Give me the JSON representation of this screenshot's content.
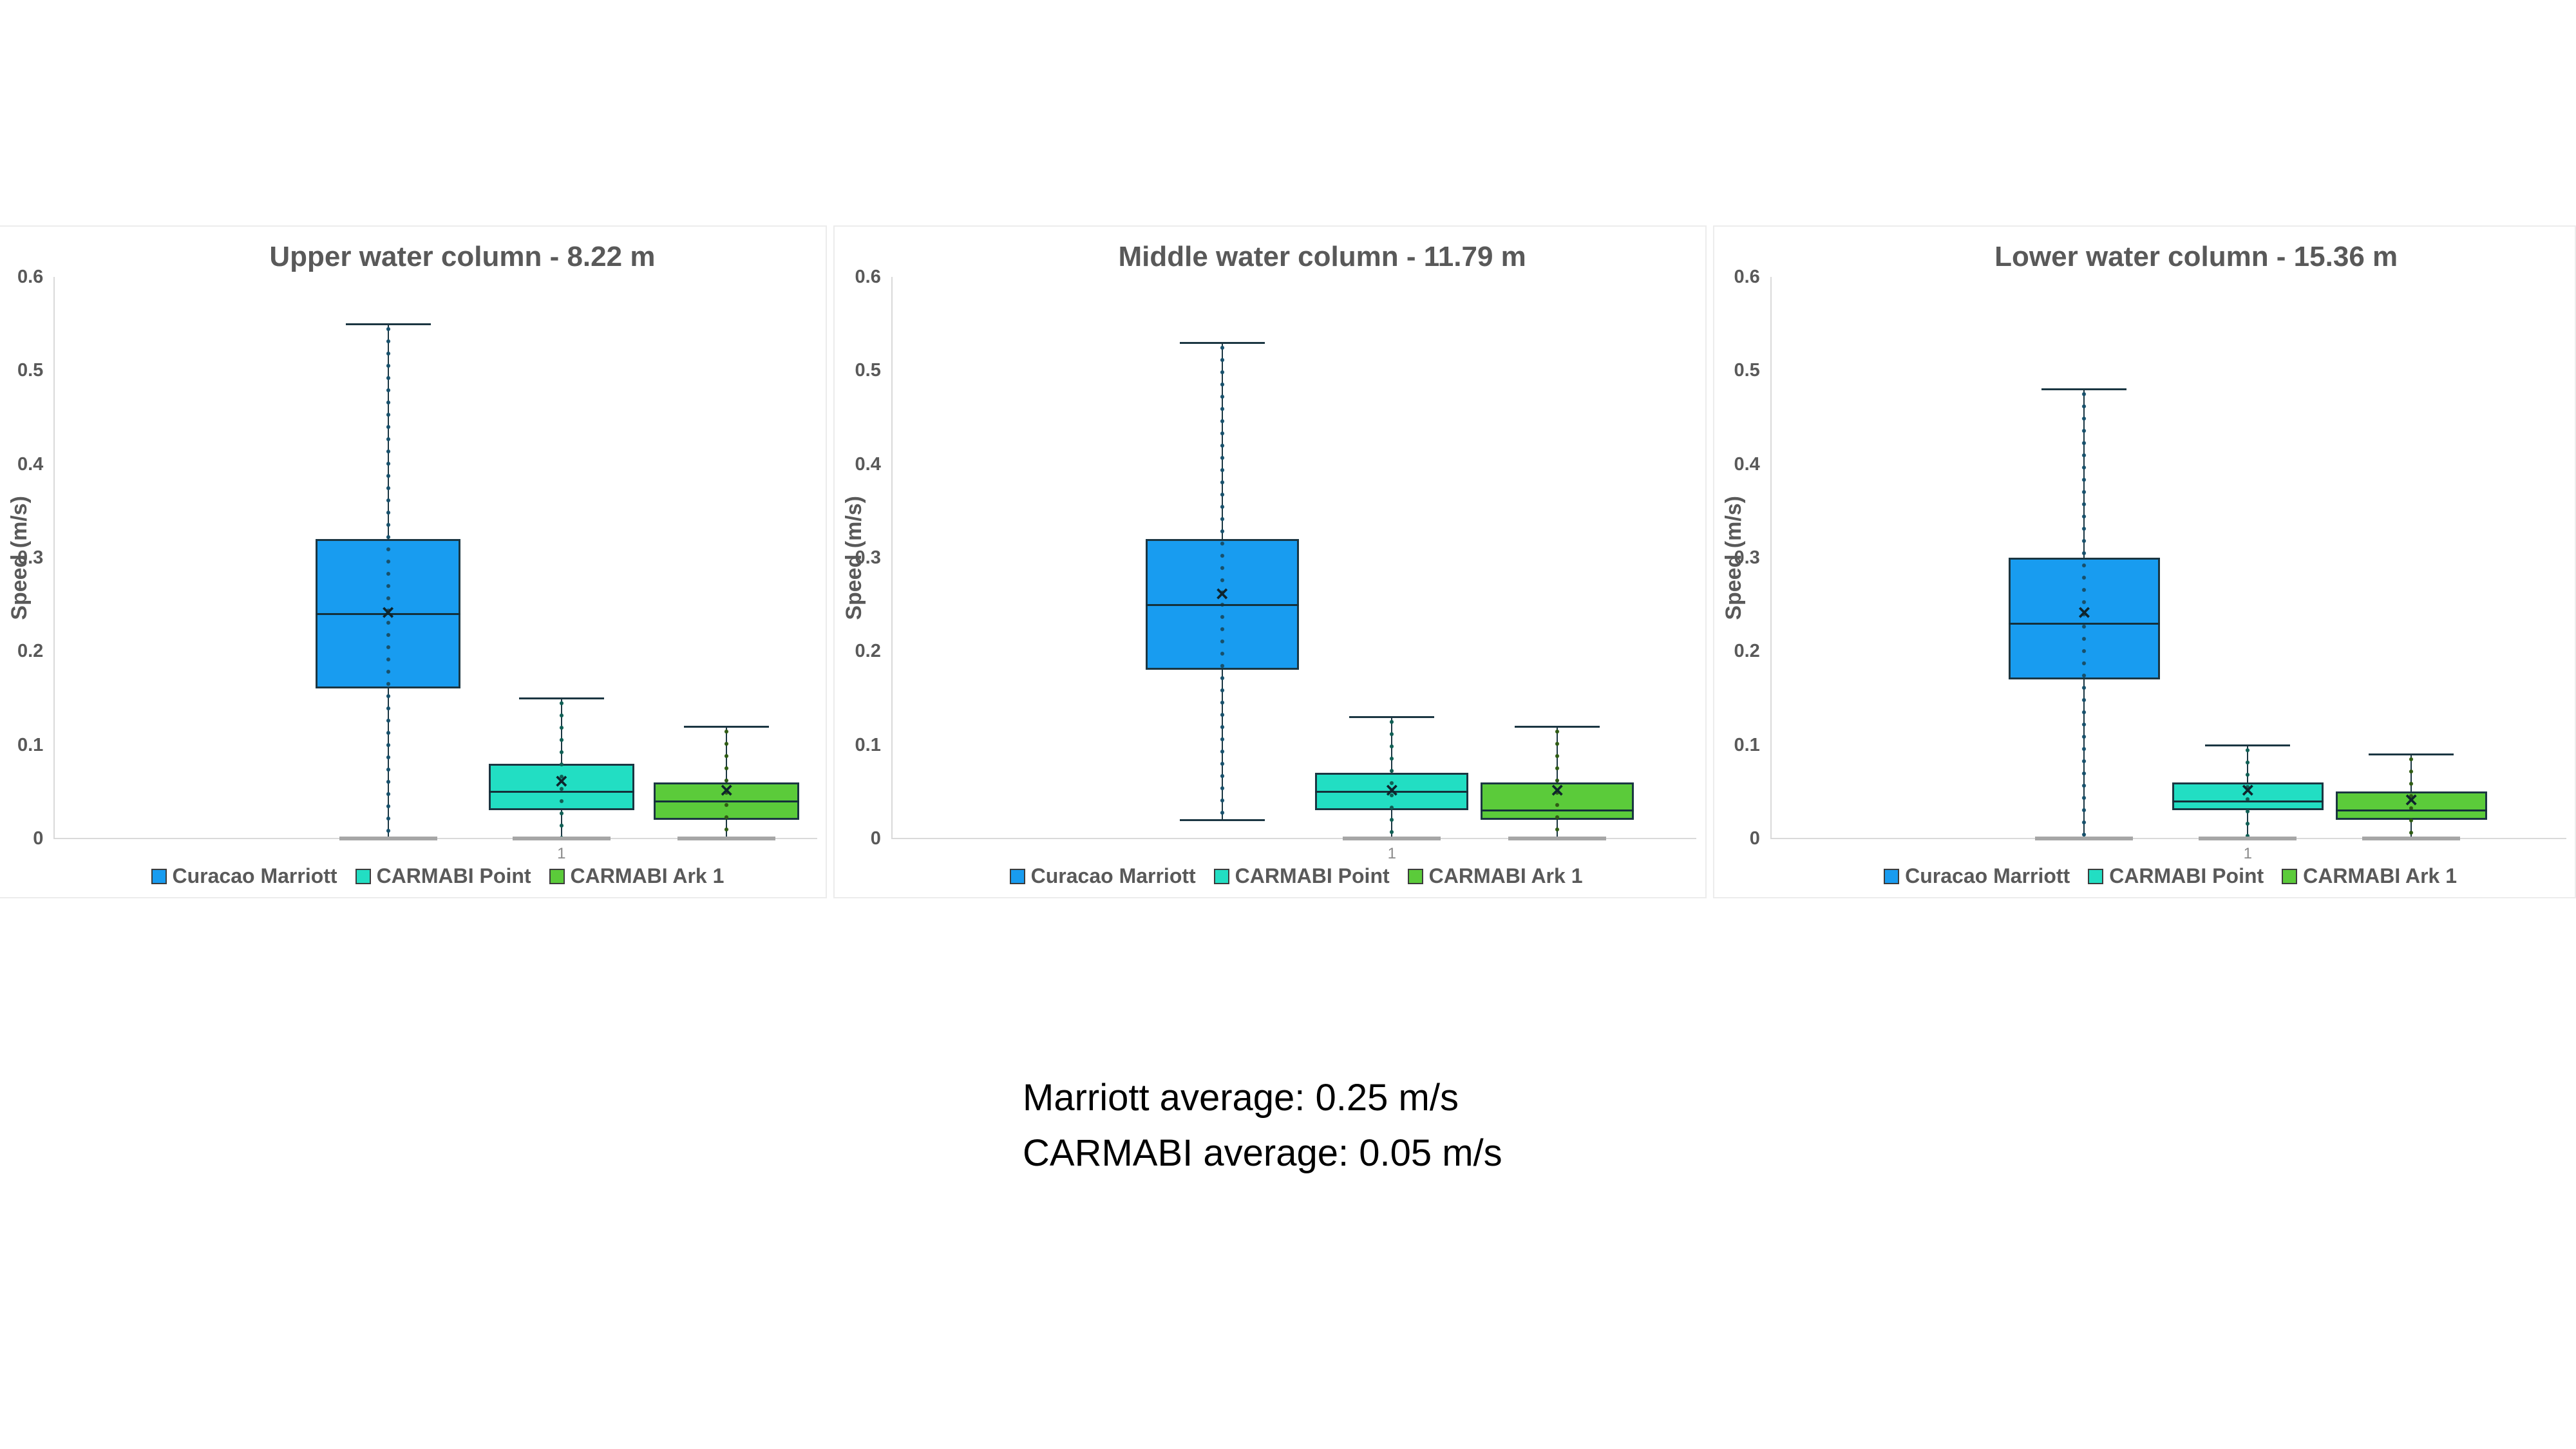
{
  "colors": {
    "background": "#ffffff",
    "text_gray": "#595959",
    "axis_gray": "#d9d9d9",
    "stroke_dark": "#1b3642",
    "bottom_cap_gray": "#a6a6a6",
    "summary_text": "#000000"
  },
  "summary": {
    "line1": "Marriott average: 0.25 m/s",
    "line2": "CARMABI average: 0.05 m/s"
  },
  "chart_data": [
    {
      "type": "boxplot",
      "title": "Upper water column - 8.22 m",
      "ylabel": "Speed (m/s)",
      "ylim": [
        0,
        0.6
      ],
      "yticks": [
        0,
        0.1,
        0.2,
        0.3,
        0.4,
        0.5,
        0.6
      ],
      "xlabel": "1",
      "grid": false,
      "legend_position": "bottom",
      "series": [
        {
          "name": "Curacao Marriott",
          "color": "#189CF0",
          "dot_color": "#17506b",
          "min": 0,
          "q1": 0.16,
          "median": 0.24,
          "mean": 0.24,
          "q3": 0.32,
          "max": 0.55
        },
        {
          "name": "CARMABI Point",
          "color": "#22DEC3",
          "dot_color": "#0f5f54",
          "min": 0,
          "q1": 0.03,
          "median": 0.05,
          "mean": 0.06,
          "q3": 0.08,
          "max": 0.15
        },
        {
          "name": "CARMABI Ark 1",
          "color": "#5BCB3A",
          "dot_color": "#2f5c14",
          "min": 0,
          "q1": 0.02,
          "median": 0.04,
          "mean": 0.05,
          "q3": 0.06,
          "max": 0.12
        }
      ]
    },
    {
      "type": "boxplot",
      "title": "Middle water column - 11.79 m",
      "ylabel": "Speed (m/s)",
      "ylim": [
        0,
        0.6
      ],
      "yticks": [
        0,
        0.1,
        0.2,
        0.3,
        0.4,
        0.5,
        0.6
      ],
      "xlabel": "1",
      "grid": false,
      "legend_position": "bottom",
      "series": [
        {
          "name": "Curacao Marriott",
          "color": "#189CF0",
          "dot_color": "#17506b",
          "min": 0.02,
          "q1": 0.18,
          "median": 0.25,
          "mean": 0.26,
          "q3": 0.32,
          "max": 0.53
        },
        {
          "name": "CARMABI Point",
          "color": "#22DEC3",
          "dot_color": "#0f5f54",
          "min": 0,
          "q1": 0.03,
          "median": 0.05,
          "mean": 0.05,
          "q3": 0.07,
          "max": 0.13
        },
        {
          "name": "CARMABI Ark 1",
          "color": "#5BCB3A",
          "dot_color": "#2f5c14",
          "min": 0,
          "q1": 0.02,
          "median": 0.03,
          "mean": 0.05,
          "q3": 0.06,
          "max": 0.12
        }
      ]
    },
    {
      "type": "boxplot",
      "title": "Lower water column - 15.36 m",
      "ylabel": "Speed (m/s)",
      "ylim": [
        0,
        0.6
      ],
      "yticks": [
        0,
        0.1,
        0.2,
        0.3,
        0.4,
        0.5,
        0.6
      ],
      "xlabel": "1",
      "grid": false,
      "legend_position": "bottom",
      "series": [
        {
          "name": "Curacao Marriott",
          "color": "#189CF0",
          "dot_color": "#17506b",
          "min": 0,
          "q1": 0.17,
          "median": 0.23,
          "mean": 0.24,
          "q3": 0.3,
          "max": 0.48
        },
        {
          "name": "CARMABI Point",
          "color": "#22DEC3",
          "dot_color": "#0f5f54",
          "min": 0,
          "q1": 0.03,
          "median": 0.04,
          "mean": 0.05,
          "q3": 0.06,
          "max": 0.1
        },
        {
          "name": "CARMABI Ark 1",
          "color": "#5BCB3A",
          "dot_color": "#2f5c14",
          "min": 0,
          "q1": 0.02,
          "median": 0.03,
          "mean": 0.04,
          "q3": 0.05,
          "max": 0.09
        }
      ]
    }
  ]
}
